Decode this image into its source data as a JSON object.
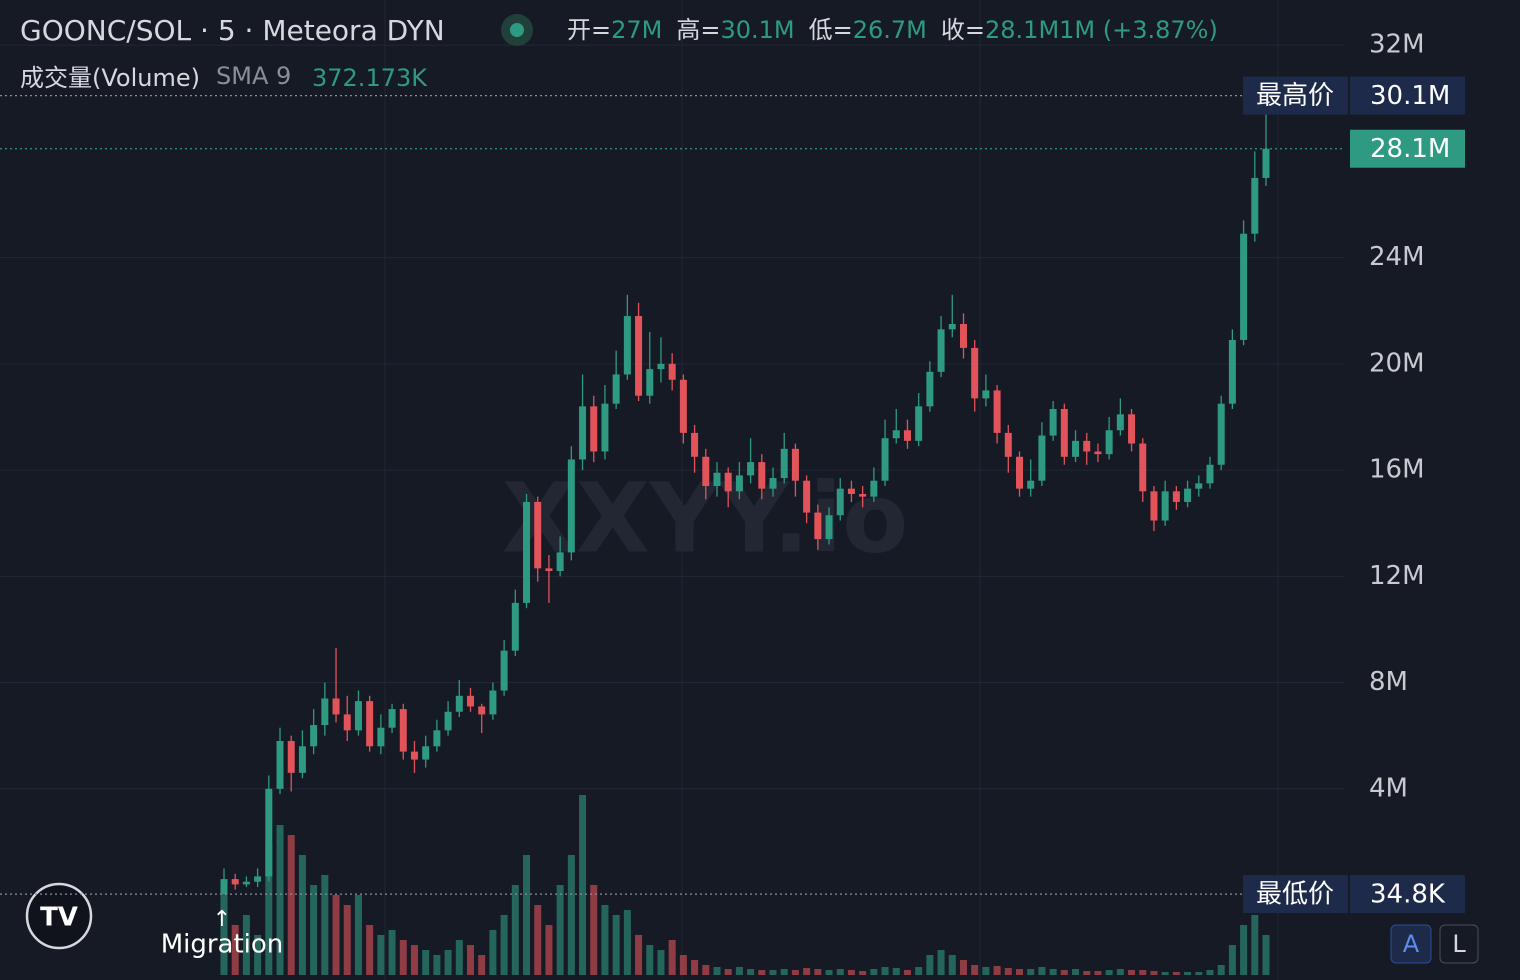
{
  "chart_data": {
    "type": "candlestick",
    "title": "GOONC/SOL · 5 · Meteora DYN",
    "ohlc_legend": [
      {
        "label": "开=",
        "value": "27M"
      },
      {
        "label": "高=",
        "value": "30.1M"
      },
      {
        "label": "低=",
        "value": "26.7M"
      },
      {
        "label": "收=",
        "value": "28.1M"
      },
      {
        "label": "",
        "value": "1M (+3.87%)"
      }
    ],
    "volume_label": "成交量(Volume)",
    "sma_label": "SMA 9",
    "sma_value": "372.173K",
    "watermark": "XXYY.io",
    "annotation": {
      "arrow": "↑",
      "text": "Migration"
    },
    "buttons": [
      "A",
      "L"
    ],
    "up_color": "#2e9a82",
    "down_color": "#e2535a",
    "ylim": [
      -3.2,
      33.7
    ],
    "yticks": [
      {
        "value": 4,
        "label": "4M"
      },
      {
        "value": 8,
        "label": "8M"
      },
      {
        "value": 12,
        "label": "12M"
      },
      {
        "value": 16,
        "label": "16M"
      },
      {
        "value": 20,
        "label": "20M"
      },
      {
        "value": 24,
        "label": "24M"
      },
      {
        "value": 32,
        "label": "32M"
      }
    ],
    "grid": true,
    "high_marker": {
      "label": "最高价",
      "value": 30.1,
      "value_label": "30.1M"
    },
    "last_marker": {
      "value": 28.1,
      "value_label": "28.1M"
    },
    "low_marker": {
      "label": "最低价",
      "value": 0.0348,
      "value_label": "34.8K"
    },
    "open": [
      0.04,
      0.6,
      0.4,
      0.5,
      0.7,
      4.0,
      5.8,
      4.6,
      5.6,
      6.4,
      7.4,
      6.8,
      6.2,
      7.3,
      5.6,
      6.3,
      7.0,
      5.4,
      5.1,
      5.6,
      6.2,
      6.9,
      7.5,
      7.1,
      6.8,
      7.7,
      9.2,
      11.0,
      14.8,
      12.3,
      12.2,
      12.9,
      16.4,
      18.4,
      16.7,
      18.5,
      19.6,
      21.8,
      18.8,
      19.8,
      20.0,
      19.4,
      17.4,
      16.5,
      15.4,
      15.9,
      15.2,
      15.8,
      16.3,
      15.3,
      15.7,
      16.8,
      15.6,
      14.4,
      13.4,
      14.3,
      15.3,
      15.1,
      15.0,
      15.6,
      17.2,
      17.5,
      17.1,
      18.4,
      19.7,
      21.3,
      21.5,
      20.6,
      18.7,
      19.0,
      17.4,
      16.5,
      15.3,
      15.6,
      17.3,
      18.3,
      16.5,
      17.1,
      16.7,
      16.6,
      17.5,
      18.1,
      17.0,
      15.2,
      14.1,
      15.2,
      14.8,
      15.3,
      15.5,
      16.2,
      18.5,
      20.9,
      24.9,
      27.0
    ],
    "high": [
      1.0,
      0.8,
      0.7,
      1.0,
      4.5,
      6.3,
      6.0,
      6.2,
      7.0,
      8.0,
      9.3,
      7.5,
      7.7,
      7.5,
      6.8,
      7.2,
      7.2,
      5.8,
      6.0,
      6.6,
      7.3,
      8.1,
      7.8,
      7.2,
      8.0,
      9.6,
      11.5,
      15.1,
      15.0,
      12.8,
      13.5,
      16.9,
      19.6,
      18.8,
      19.2,
      20.5,
      22.6,
      22.3,
      21.2,
      21.0,
      20.4,
      19.6,
      17.7,
      16.8,
      16.3,
      16.1,
      16.3,
      17.2,
      16.6,
      16.1,
      17.4,
      17.0,
      15.8,
      14.7,
      14.6,
      15.7,
      15.6,
      15.4,
      16.1,
      17.9,
      18.3,
      17.9,
      18.9,
      20.1,
      21.8,
      22.6,
      21.9,
      20.9,
      19.6,
      19.2,
      17.7,
      16.7,
      16.4,
      17.8,
      18.6,
      18.5,
      17.5,
      17.4,
      17.0,
      18.0,
      18.7,
      18.3,
      17.2,
      15.4,
      15.6,
      15.4,
      15.6,
      15.8,
      16.5,
      18.8,
      21.3,
      25.4,
      28.0,
      30.1
    ],
    "low": [
      0.0348,
      0.2,
      0.3,
      0.3,
      0.5,
      3.8,
      3.9,
      4.4,
      5.3,
      6.0,
      6.5,
      5.8,
      6.0,
      5.4,
      5.3,
      6.1,
      5.1,
      4.6,
      4.8,
      5.4,
      6.0,
      6.7,
      6.9,
      6.1,
      6.6,
      7.5,
      9.0,
      10.8,
      11.8,
      11.0,
      12.0,
      12.6,
      16.0,
      16.3,
      16.4,
      18.3,
      19.4,
      18.6,
      18.5,
      19.3,
      19.0,
      17.0,
      15.9,
      14.9,
      15.0,
      14.6,
      14.9,
      15.5,
      14.9,
      15.0,
      15.5,
      15.0,
      14.0,
      13.0,
      13.2,
      14.1,
      14.8,
      14.6,
      14.8,
      15.4,
      17.0,
      16.8,
      16.9,
      18.2,
      19.5,
      21.0,
      20.2,
      18.2,
      18.4,
      17.0,
      15.9,
      15.0,
      15.0,
      15.4,
      17.1,
      16.2,
      16.3,
      16.2,
      16.3,
      16.4,
      17.3,
      16.7,
      14.8,
      13.7,
      13.9,
      14.5,
      14.6,
      15.0,
      15.3,
      16.0,
      18.3,
      20.7,
      24.6,
      26.7
    ],
    "close": [
      0.6,
      0.4,
      0.5,
      0.7,
      4.0,
      5.8,
      4.6,
      5.6,
      6.4,
      7.4,
      6.8,
      6.2,
      7.3,
      5.6,
      6.3,
      7.0,
      5.4,
      5.1,
      5.6,
      6.2,
      6.9,
      7.5,
      7.1,
      6.8,
      7.7,
      9.2,
      11.0,
      14.8,
      12.3,
      12.2,
      12.9,
      16.4,
      18.4,
      16.7,
      18.5,
      19.6,
      21.8,
      18.8,
      19.8,
      20.0,
      19.4,
      17.4,
      16.5,
      15.4,
      15.9,
      15.2,
      15.8,
      16.3,
      15.3,
      15.7,
      16.8,
      15.6,
      14.4,
      13.4,
      14.3,
      15.3,
      15.1,
      15.0,
      15.6,
      17.2,
      17.5,
      17.1,
      18.4,
      19.7,
      21.3,
      21.5,
      20.6,
      18.7,
      19.0,
      17.4,
      16.5,
      15.3,
      15.6,
      17.3,
      18.3,
      16.5,
      17.1,
      16.7,
      16.6,
      17.5,
      18.1,
      17.0,
      15.2,
      14.1,
      15.2,
      14.8,
      15.3,
      15.5,
      16.2,
      18.5,
      20.9,
      24.9,
      27.0,
      28.1
    ],
    "volume": [
      900,
      500,
      600,
      400,
      1300,
      1500,
      1400,
      1200,
      900,
      1000,
      800,
      700,
      800,
      500,
      400,
      450,
      350,
      300,
      250,
      200,
      250,
      350,
      300,
      200,
      450,
      600,
      900,
      1200,
      700,
      500,
      900,
      1200,
      1800,
      900,
      700,
      600,
      650,
      400,
      300,
      250,
      350,
      200,
      150,
      100,
      80,
      60,
      80,
      60,
      50,
      50,
      60,
      50,
      70,
      60,
      50,
      60,
      50,
      40,
      60,
      80,
      70,
      50,
      80,
      200,
      250,
      200,
      150,
      100,
      80,
      90,
      70,
      60,
      60,
      80,
      60,
      50,
      60,
      40,
      40,
      50,
      60,
      50,
      50,
      40,
      30,
      30,
      30,
      30,
      50,
      100,
      300,
      500,
      600,
      400
    ]
  }
}
